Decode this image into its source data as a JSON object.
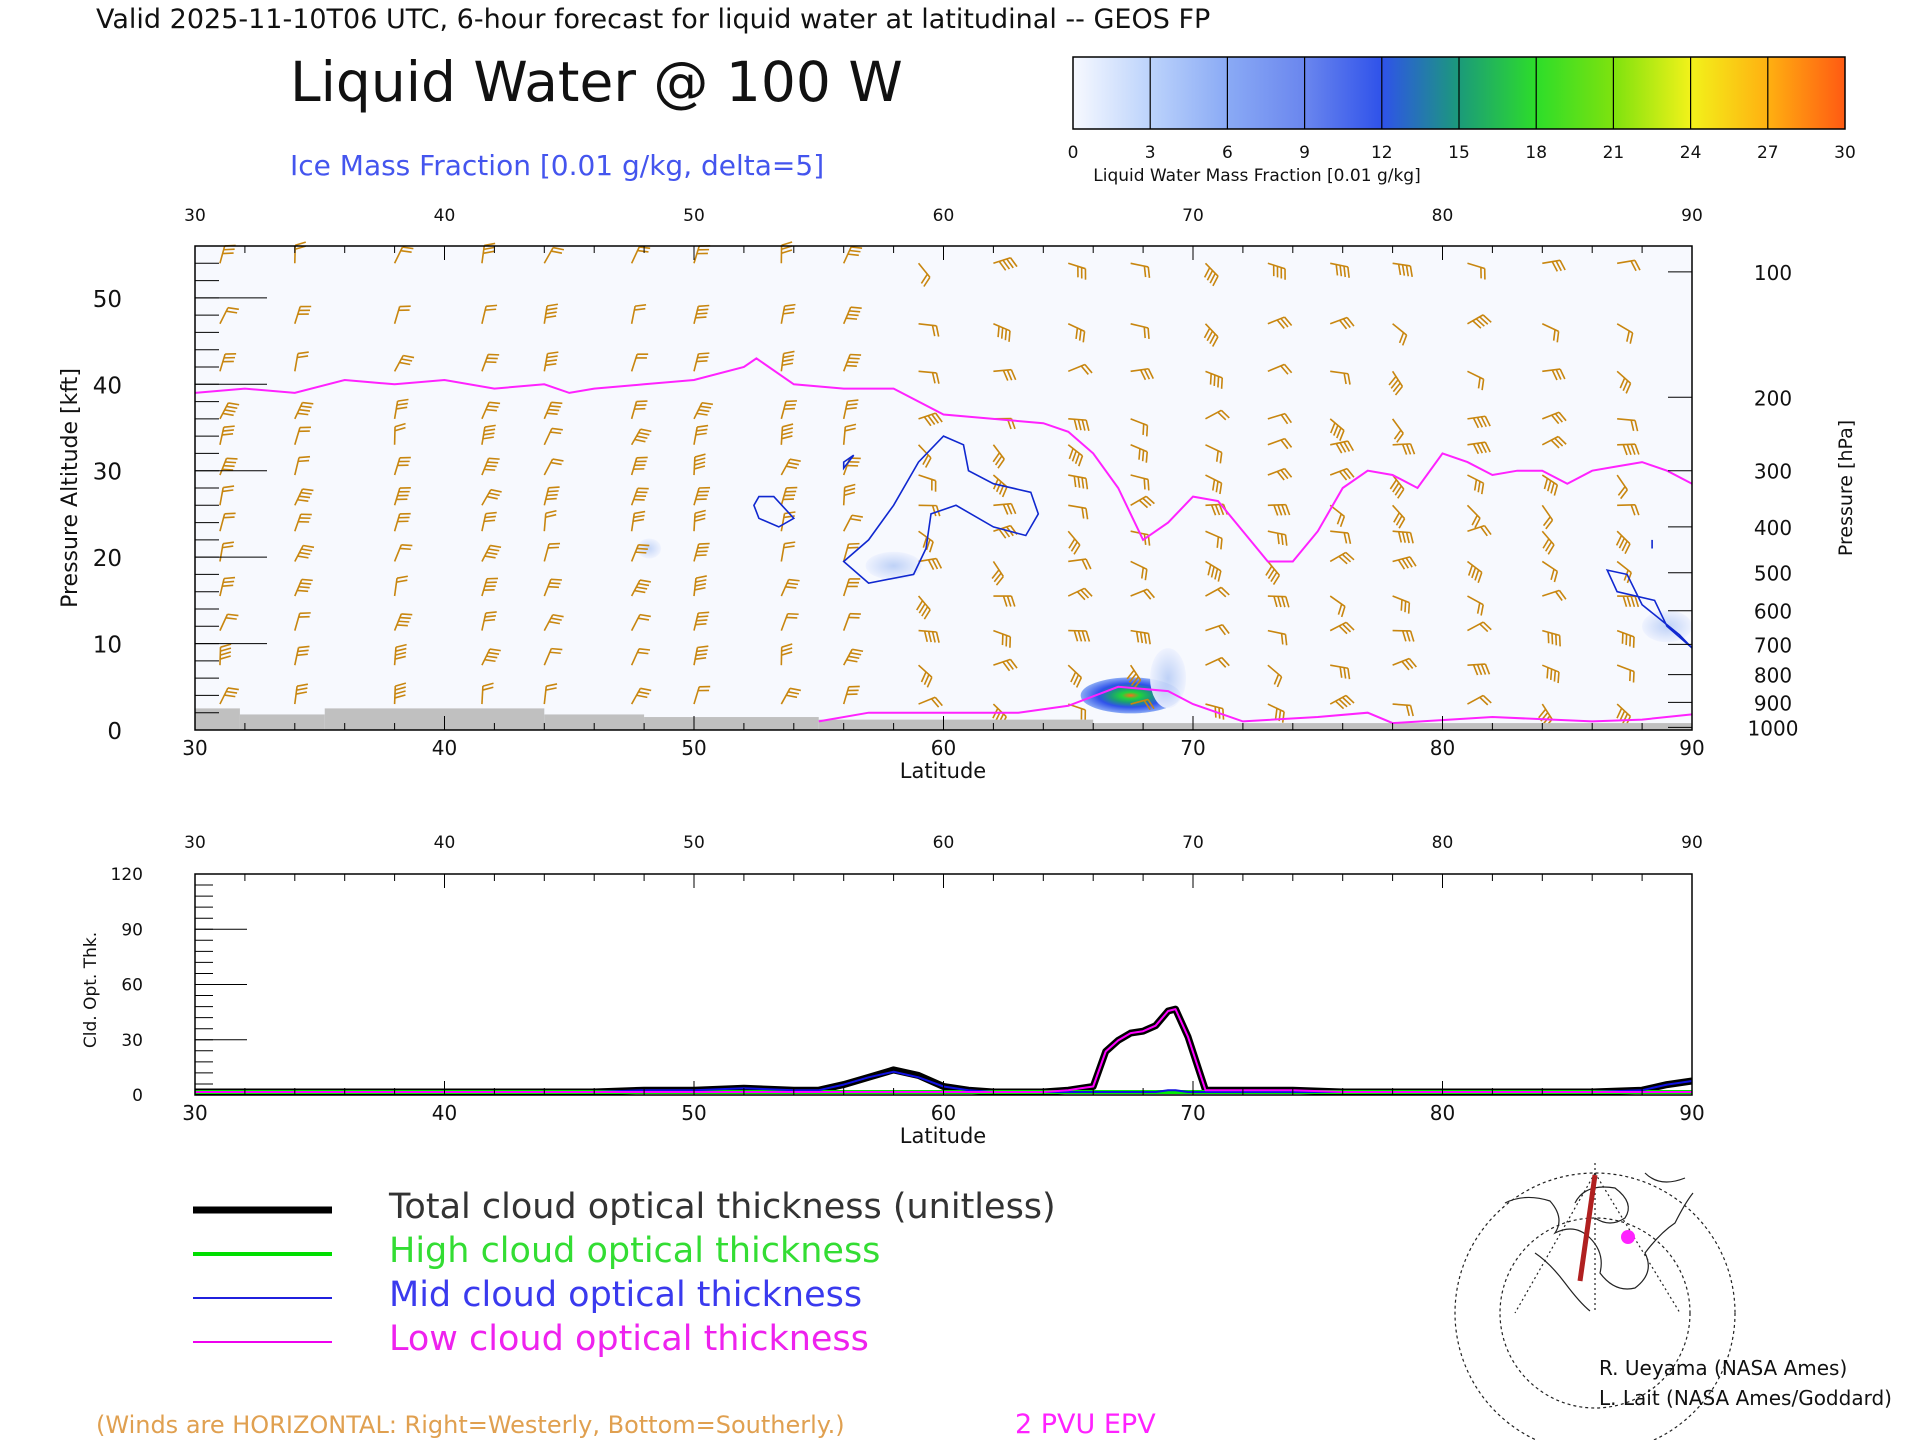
{
  "header": {
    "valid_line": "Valid 2025-11-10T06 UTC, 6-hour forecast for liquid water at latitudinal -- GEOS FP",
    "title": "Liquid Water @ 100 W",
    "subtitle": "Ice Mass Fraction [0.01 g/kg, delta=5]"
  },
  "colorbar": {
    "ticks": [
      "0",
      "3",
      "6",
      "9",
      "12",
      "15",
      "18",
      "21",
      "24",
      "27",
      "30"
    ],
    "colors": [
      "#f7f9ff",
      "#bcd3fb",
      "#8aaaf5",
      "#6a86ee",
      "#2f52ea",
      "#1b9a7a",
      "#2ddd2a",
      "#7ee20e",
      "#f2f21a",
      "#ffb011",
      "#ff5a12"
    ],
    "label": "Liquid Water Mass Fraction [0.01 g/kg]"
  },
  "chart_data": [
    {
      "type": "heatmap",
      "name": "cross-section",
      "xlabel": "Latitude",
      "ylabel": "Pressure Altitude [kft]",
      "ylabel_right": "Pressure [hPa]",
      "xlim": [
        30,
        90
      ],
      "ylim": [
        0,
        56
      ],
      "x_ticks": [
        "30",
        "40",
        "50",
        "60",
        "70",
        "80",
        "90"
      ],
      "y_ticks": [
        "0",
        "10",
        "20",
        "30",
        "40",
        "50"
      ],
      "pressure_ticks": [
        {
          "label": "100",
          "kft": 53
        },
        {
          "label": "200",
          "kft": 38.5
        },
        {
          "label": "300",
          "kft": 30
        },
        {
          "label": "400",
          "kft": 23.5
        },
        {
          "label": "500",
          "kft": 18.2
        },
        {
          "label": "600",
          "kft": 13.8
        },
        {
          "label": "700",
          "kft": 9.9
        },
        {
          "label": "800",
          "kft": 6.4
        },
        {
          "label": "900",
          "kft": 3.2
        },
        {
          "label": "1000",
          "kft": 0.3
        }
      ],
      "epv_2pvu": {
        "lat": [
          30,
          32,
          34,
          36,
          38,
          40,
          42,
          44,
          45,
          46,
          48,
          50,
          52,
          52.5,
          54,
          56,
          58,
          60,
          62,
          64,
          65,
          66,
          67,
          68,
          69,
          70,
          71,
          72,
          73,
          74,
          75,
          76,
          77,
          78,
          79,
          80,
          81,
          82,
          83,
          84,
          85,
          86,
          87,
          88,
          89,
          90
        ],
        "kft": [
          39,
          39.5,
          39,
          40.5,
          40,
          40.5,
          39.5,
          40,
          39,
          39.5,
          40,
          40.5,
          42,
          43,
          40,
          39.5,
          39.5,
          36.5,
          36,
          35.5,
          34.5,
          32,
          28,
          22,
          24,
          27,
          26.5,
          23,
          19.5,
          19.5,
          23,
          28,
          30,
          29.5,
          28,
          32,
          31,
          29.5,
          30,
          30,
          28.5,
          30,
          30.5,
          31,
          30,
          28.5
        ]
      },
      "liquid_water_max": {
        "lat": 67.5,
        "kft": 4,
        "value": 18
      },
      "ice_contours_kft_lat": "closed loops near 52-53N 24-27 kft, 57-63N 18-34 kft, 87-90N 10-19 kft",
      "wind_barbs_legend": "(Winds are HORIZONTAL: Right=Westerly, Bottom=Southerly.)",
      "epv_label": "2 PVU EPV"
    },
    {
      "type": "line",
      "name": "cloud-optical-thickness",
      "xlabel": "Latitude",
      "ylabel": "Cld. Opt. Thk.",
      "xlim": [
        30,
        90
      ],
      "ylim": [
        0,
        120
      ],
      "x_ticks": [
        "30",
        "40",
        "50",
        "60",
        "70",
        "80",
        "90"
      ],
      "y_ticks": [
        "0",
        "30",
        "60",
        "90",
        "120"
      ],
      "x": [
        30,
        46,
        48,
        50,
        52,
        54,
        55,
        56,
        57,
        58,
        59,
        60,
        61,
        62,
        64,
        65,
        65.5,
        66,
        66.5,
        67,
        67.5,
        68,
        68.5,
        69,
        69.3,
        69.8,
        70.5,
        72,
        74,
        76,
        78,
        80,
        82,
        84,
        86,
        88,
        89,
        90
      ],
      "series": [
        {
          "name": "Total cloud optical thickness (unitless)",
          "color": "#000000",
          "values": [
            0,
            0,
            1,
            1,
            2,
            1,
            1,
            4,
            8,
            12,
            9,
            3,
            1,
            0,
            0,
            1,
            2,
            3,
            22,
            28,
            32,
            33,
            36,
            44,
            45,
            30,
            1,
            1,
            1,
            0,
            0,
            0,
            0,
            0,
            0,
            1,
            4,
            6
          ]
        },
        {
          "name": "High cloud optical thickness",
          "color": "#00ee00",
          "values": [
            0,
            0,
            0,
            0,
            0,
            0,
            0,
            0,
            0,
            0,
            0,
            0,
            0,
            0,
            0,
            0,
            0,
            0,
            0,
            0,
            0,
            0,
            0,
            0,
            0,
            0,
            0,
            0,
            0,
            0,
            0,
            0,
            0,
            0,
            0,
            0,
            0,
            0
          ]
        },
        {
          "name": "Mid cloud optical thickness",
          "color": "#1010e0",
          "values": [
            0,
            0,
            1,
            1,
            2,
            1,
            1,
            4,
            8,
            11,
            8,
            3,
            1,
            0,
            0,
            0,
            0,
            0,
            0,
            0,
            0,
            0,
            0,
            1,
            1,
            0,
            0,
            0,
            0,
            0,
            0,
            0,
            0,
            0,
            0,
            1,
            4,
            6
          ]
        },
        {
          "name": "Low cloud optical thickness",
          "color": "#ff00ff",
          "values": [
            0,
            0,
            0,
            0,
            0,
            0,
            0,
            0,
            0,
            0,
            0,
            0,
            0,
            0,
            0,
            1,
            2,
            3,
            22,
            28,
            32,
            33,
            36,
            44,
            45,
            30,
            1,
            1,
            1,
            0,
            0,
            0,
            0,
            0,
            0,
            0,
            0,
            0
          ]
        }
      ]
    }
  ],
  "legend": [
    {
      "label": "Total cloud optical thickness (unitless)",
      "color": "#000000",
      "text_color": "#333333",
      "width": 7
    },
    {
      "label": "High cloud optical thickness",
      "color": "#00dd00",
      "text_color": "#33dd33",
      "width": 4
    },
    {
      "label": "Mid cloud optical thickness",
      "color": "#2020dd",
      "text_color": "#3a3aee",
      "width": 2
    },
    {
      "label": "Low cloud optical thickness",
      "color": "#ee00ee",
      "text_color": "#ee22ee",
      "width": 2
    }
  ],
  "footer": {
    "winds_note": "(Winds are HORIZONTAL: Right=Westerly, Bottom=Southerly.)",
    "epv_label": "2 PVU EPV",
    "credit_1": "R. Ueyama (NASA Ames)",
    "credit_2": "L. Lait (NASA Ames/Goddard)"
  },
  "colors": {
    "epv": "#ff22ff",
    "ice_contour": "#1028d0",
    "wind_barb": "#c8860f",
    "terrain": "#c0c0c0",
    "title": "#111111",
    "subtitle": "#4455ee"
  },
  "inset_map": {
    "icons": [
      "globe-map-icon",
      "section-line",
      "location-marker"
    ]
  }
}
